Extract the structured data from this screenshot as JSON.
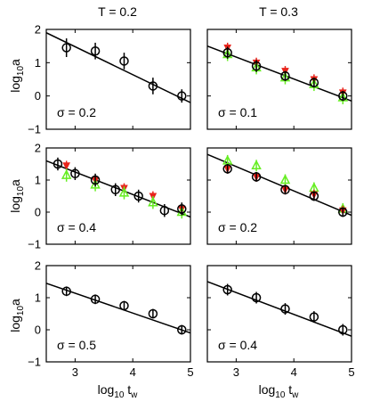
{
  "figure": {
    "column_titles": [
      "T = 0.2",
      "T = 0.3"
    ],
    "xlabel": {
      "base": "log",
      "sub": "10",
      "rest": " t",
      "sub2": "w"
    },
    "ylabel": {
      "base": "log",
      "sub": "10",
      "rest": "a"
    }
  },
  "chart_data": [
    {
      "type": "scatter",
      "label": "σ = 0.2",
      "xlim": [
        2.5,
        5
      ],
      "ylim": [
        -1,
        2
      ],
      "xticks": [
        3,
        4,
        5
      ],
      "yticks": [
        -1,
        0,
        1,
        2
      ],
      "fit_line": {
        "x": [
          2.5,
          5
        ],
        "y": [
          1.9,
          -0.2
        ]
      },
      "series": [
        {
          "marker": "circle",
          "color": "#000000",
          "x": [
            2.85,
            3.35,
            3.85,
            4.35,
            4.85
          ],
          "y": [
            1.45,
            1.35,
            1.05,
            0.3,
            0.0
          ],
          "err": [
            0.28,
            0.25,
            0.25,
            0.25,
            0.2
          ]
        }
      ]
    },
    {
      "type": "scatter",
      "label": "σ = 0.1",
      "xlim": [
        2.5,
        5
      ],
      "ylim": [
        -1,
        2
      ],
      "xticks": [
        3,
        4,
        5
      ],
      "yticks": [
        -1,
        0,
        1,
        2
      ],
      "fit_line": {
        "x": [
          2.5,
          5
        ],
        "y": [
          1.5,
          -0.15
        ]
      },
      "series": [
        {
          "marker": "triangle-down",
          "color": "#e8231b",
          "x": [
            2.85,
            3.35,
            3.85,
            4.35,
            4.85
          ],
          "y": [
            1.45,
            1.0,
            0.75,
            0.5,
            0.1
          ],
          "err": [
            0.15,
            0.15,
            0.15,
            0.15,
            0.15
          ]
        },
        {
          "marker": "triangle-up",
          "color": "#66ee22",
          "x": [
            2.85,
            3.35,
            3.85,
            4.35,
            4.85
          ],
          "y": [
            1.25,
            0.85,
            0.55,
            0.35,
            -0.05
          ],
          "err": [
            0.2,
            0.2,
            0.2,
            0.2,
            0.2
          ]
        },
        {
          "marker": "circle",
          "color": "#000000",
          "x": [
            2.85,
            3.35,
            3.85,
            4.35,
            4.85
          ],
          "y": [
            1.3,
            0.9,
            0.6,
            0.4,
            0.0
          ],
          "err": [
            0.18,
            0.18,
            0.15,
            0.15,
            0.15
          ]
        }
      ]
    },
    {
      "type": "scatter",
      "label": "σ = 0.4",
      "xlim": [
        2.5,
        5
      ],
      "ylim": [
        -1,
        2
      ],
      "xticks": [
        3,
        4,
        5
      ],
      "yticks": [
        -1,
        0,
        1,
        2
      ],
      "fit_line": {
        "x": [
          2.5,
          5
        ],
        "y": [
          1.6,
          -0.15
        ]
      },
      "series": [
        {
          "marker": "triangle-down",
          "color": "#e8231b",
          "x": [
            2.85,
            3.35,
            3.85,
            4.35,
            4.85
          ],
          "y": [
            1.45,
            1.0,
            0.75,
            0.5,
            0.1
          ],
          "err": [
            0.15,
            0.15,
            0.15,
            0.15,
            0.15
          ]
        },
        {
          "marker": "triangle-up",
          "color": "#66ee22",
          "x": [
            2.85,
            3.35,
            3.85,
            4.35,
            4.85
          ],
          "y": [
            1.15,
            0.85,
            0.6,
            0.3,
            0.0
          ],
          "err": [
            0.2,
            0.2,
            0.2,
            0.2,
            0.2
          ]
        },
        {
          "marker": "circle",
          "color": "#000000",
          "x": [
            2.7,
            3.0,
            3.35,
            3.7,
            4.1,
            4.55,
            4.85
          ],
          "y": [
            1.5,
            1.2,
            1.0,
            0.7,
            0.5,
            0.05,
            0.1
          ],
          "err": [
            0.2,
            0.2,
            0.2,
            0.2,
            0.2,
            0.2,
            0.2
          ]
        }
      ]
    },
    {
      "type": "scatter",
      "label": "σ = 0.2",
      "xlim": [
        2.5,
        5
      ],
      "ylim": [
        -1,
        2
      ],
      "xticks": [
        3,
        4,
        5
      ],
      "yticks": [
        -1,
        0,
        1,
        2
      ],
      "fit_line": {
        "x": [
          2.5,
          5
        ],
        "y": [
          1.8,
          -0.1
        ]
      },
      "series": [
        {
          "marker": "triangle-up",
          "color": "#66ee22",
          "x": [
            2.85,
            3.35,
            3.85,
            4.35,
            4.85
          ],
          "y": [
            1.6,
            1.45,
            1.0,
            0.75,
            0.1
          ],
          "err": [
            0.18,
            0.18,
            0.18,
            0.18,
            0.18
          ]
        },
        {
          "marker": "triangle-down",
          "color": "#e8231b",
          "x": [
            2.85,
            3.35,
            3.85,
            4.35,
            4.85
          ],
          "y": [
            1.35,
            1.1,
            0.7,
            0.55,
            0.05
          ],
          "err": [
            0.15,
            0.15,
            0.15,
            0.15,
            0.15
          ]
        },
        {
          "marker": "circle",
          "color": "#000000",
          "x": [
            2.85,
            3.35,
            3.85,
            4.35,
            4.85
          ],
          "y": [
            1.35,
            1.1,
            0.7,
            0.5,
            0.0
          ],
          "err": [
            0.15,
            0.15,
            0.15,
            0.15,
            0.15
          ]
        }
      ]
    },
    {
      "type": "scatter",
      "label": "σ = 0.5",
      "xlim": [
        2.5,
        5
      ],
      "ylim": [
        -1,
        2
      ],
      "xticks": [
        3,
        4,
        5
      ],
      "yticks": [
        -1,
        0,
        1,
        2
      ],
      "fit_line": {
        "x": [
          2.5,
          5
        ],
        "y": [
          1.45,
          -0.1
        ]
      },
      "series": [
        {
          "marker": "circle",
          "color": "#000000",
          "x": [
            2.85,
            3.35,
            3.85,
            4.35,
            4.85
          ],
          "y": [
            1.2,
            0.95,
            0.75,
            0.5,
            0.0
          ],
          "err": [
            0.15,
            0.15,
            0.15,
            0.15,
            0.15
          ]
        }
      ]
    },
    {
      "type": "scatter",
      "label": "σ = 0.4",
      "xlim": [
        2.5,
        5
      ],
      "ylim": [
        -1,
        2
      ],
      "xticks": [
        3,
        4,
        5
      ],
      "yticks": [
        -1,
        0,
        1,
        2
      ],
      "fit_line": {
        "x": [
          2.5,
          5
        ],
        "y": [
          1.5,
          -0.2
        ]
      },
      "series": [
        {
          "marker": "circle",
          "color": "#000000",
          "x": [
            2.85,
            3.35,
            3.85,
            4.35,
            4.85
          ],
          "y": [
            1.25,
            1.0,
            0.65,
            0.4,
            0.0
          ],
          "err": [
            0.18,
            0.18,
            0.18,
            0.18,
            0.18
          ]
        }
      ]
    }
  ]
}
